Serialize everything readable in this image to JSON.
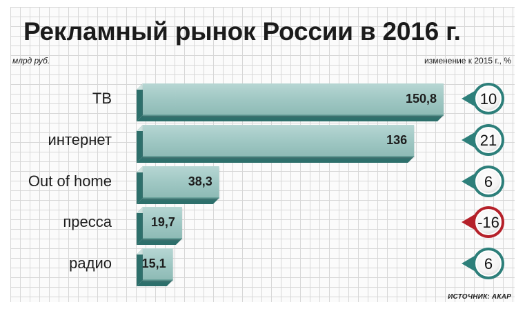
{
  "chart_data": {
    "type": "bar",
    "title": "Рекламный рынок России в 2016 г.",
    "categories": [
      "ТВ",
      "интернет",
      "Out of home",
      "пресса",
      "радио"
    ],
    "values": [
      150.8,
      136,
      38.3,
      19.7,
      15.1
    ],
    "value_labels": [
      "150,8",
      "136",
      "38,3",
      "19,7",
      "15,1"
    ],
    "xlim": [
      0,
      150.8
    ],
    "value_unit_label": "млрд руб.",
    "change_label": "изменение к 2015 г., %",
    "changes": [
      10,
      21,
      6,
      -16,
      6
    ],
    "change_labels": [
      "10",
      "21",
      "6",
      "-16",
      "6"
    ],
    "source": "ИСТОЧНИК: АКАР",
    "colors": {
      "bar": "#9fc7c3",
      "bar_side": "#2d6f6b",
      "bar_top": "#cfe3e0",
      "bubble_positive": "#2d7f7a",
      "bubble_negative": "#b5212a"
    }
  }
}
